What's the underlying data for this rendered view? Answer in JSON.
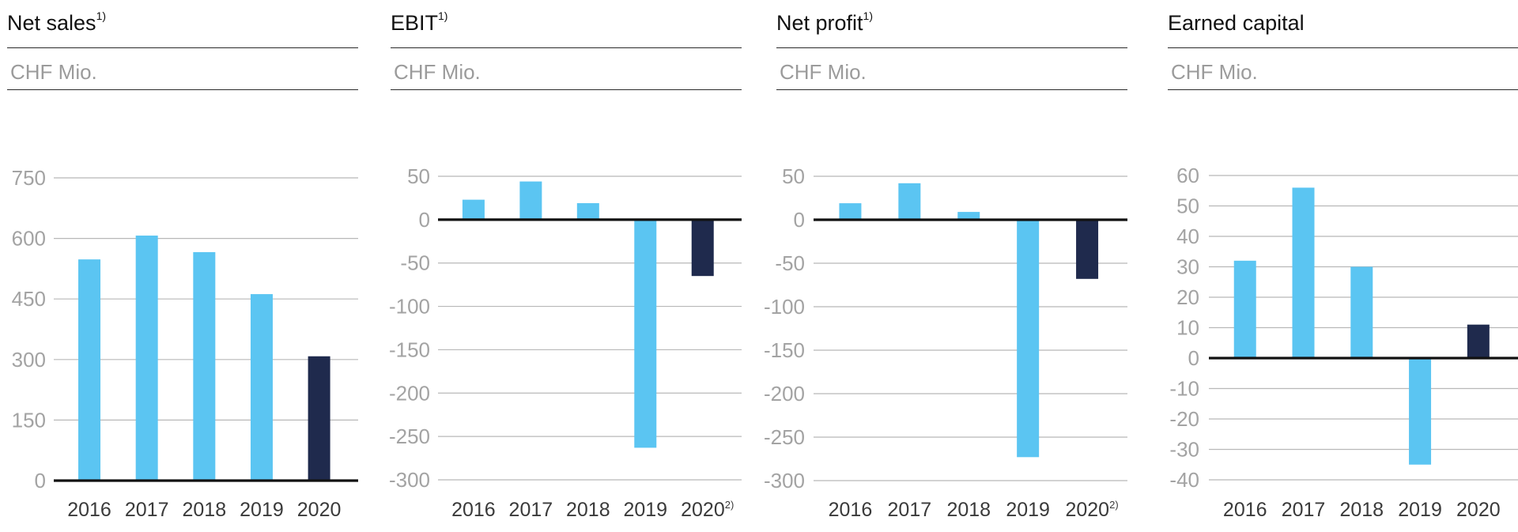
{
  "colors": {
    "bar": "#5BC5F2",
    "highlight": "#1F2A4D",
    "grid": "#b8b8b8",
    "zero": "#111111"
  },
  "chart_data": [
    {
      "type": "bar",
      "title": "Net sales",
      "title_note": "1)",
      "unit": "CHF Mio.",
      "categories": [
        "2016",
        "2017",
        "2018",
        "2019",
        "2020"
      ],
      "category_notes": [
        "",
        "",
        "",
        "",
        ""
      ],
      "values": [
        548,
        607,
        566,
        462,
        308
      ],
      "highlight_index": 4,
      "yticks": [
        750,
        600,
        450,
        300,
        150,
        0
      ],
      "ylim": [
        0,
        750
      ],
      "grid": true
    },
    {
      "type": "bar",
      "title": "EBIT",
      "title_note": "1)",
      "unit": "CHF Mio.",
      "categories": [
        "2016",
        "2017",
        "2018",
        "2019",
        "2020"
      ],
      "category_notes": [
        "",
        "",
        "",
        "",
        "2)"
      ],
      "values": [
        23,
        44,
        19,
        -263,
        -65
      ],
      "highlight_index": 4,
      "yticks": [
        50,
        0,
        -50,
        -100,
        -150,
        -200,
        -250,
        -300
      ],
      "ylim": [
        -300,
        50
      ],
      "grid": true
    },
    {
      "type": "bar",
      "title": "Net profit",
      "title_note": "1)",
      "unit": "CHF Mio.",
      "categories": [
        "2016",
        "2017",
        "2018",
        "2019",
        "2020"
      ],
      "category_notes": [
        "",
        "",
        "",
        "",
        "2)"
      ],
      "values": [
        19,
        42,
        9,
        -273,
        -68
      ],
      "highlight_index": 4,
      "yticks": [
        50,
        0,
        -50,
        -100,
        -150,
        -200,
        -250,
        -300
      ],
      "ylim": [
        -300,
        50
      ],
      "grid": true
    },
    {
      "type": "bar",
      "title": "Earned capital",
      "title_note": "",
      "unit": "CHF Mio.",
      "categories": [
        "2016",
        "2017",
        "2018",
        "2019",
        "2020"
      ],
      "category_notes": [
        "",
        "",
        "",
        "",
        ""
      ],
      "values": [
        32,
        56,
        30,
        -35,
        11
      ],
      "highlight_index": 4,
      "yticks": [
        60,
        50,
        40,
        30,
        20,
        10,
        0,
        -10,
        -20,
        -30,
        -40
      ],
      "ylim": [
        -40,
        60
      ],
      "grid": true
    }
  ]
}
